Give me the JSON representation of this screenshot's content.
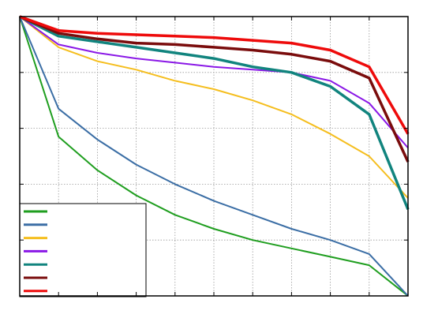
{
  "chart_data": {
    "type": "line",
    "title": "",
    "xlabel": "",
    "ylabel": "",
    "x": [
      0,
      1,
      2,
      3,
      4,
      5,
      6,
      7,
      8,
      9,
      10
    ],
    "xlim": [
      0,
      10
    ],
    "ylim": [
      0,
      1
    ],
    "grid": true,
    "legend_position": "bottom-left",
    "series": [
      {
        "color": "#1f9e1f",
        "values": [
          1.0,
          0.57,
          0.45,
          0.36,
          0.29,
          0.24,
          0.2,
          0.17,
          0.14,
          0.11,
          0.0
        ]
      },
      {
        "color": "#3b6ea5",
        "values": [
          1.0,
          0.67,
          0.56,
          0.47,
          0.4,
          0.34,
          0.29,
          0.24,
          0.2,
          0.15,
          0.0
        ]
      },
      {
        "color": "#f5be1e",
        "values": [
          1.0,
          0.89,
          0.84,
          0.81,
          0.77,
          0.74,
          0.7,
          0.65,
          0.58,
          0.5,
          0.35
        ]
      },
      {
        "color": "#8a18e6",
        "values": [
          1.0,
          0.9,
          0.87,
          0.85,
          0.835,
          0.82,
          0.81,
          0.8,
          0.77,
          0.69,
          0.53
        ]
      },
      {
        "color": "#11847e",
        "values": [
          1.0,
          0.93,
          0.91,
          0.89,
          0.87,
          0.85,
          0.82,
          0.8,
          0.75,
          0.65,
          0.31
        ]
      },
      {
        "color": "#7a0c0c",
        "values": [
          1.0,
          0.94,
          0.92,
          0.905,
          0.9,
          0.89,
          0.88,
          0.865,
          0.84,
          0.78,
          0.48
        ]
      },
      {
        "color": "#ee0b0b",
        "values": [
          1.0,
          0.95,
          0.94,
          0.935,
          0.93,
          0.925,
          0.915,
          0.905,
          0.88,
          0.82,
          0.58
        ]
      }
    ]
  }
}
